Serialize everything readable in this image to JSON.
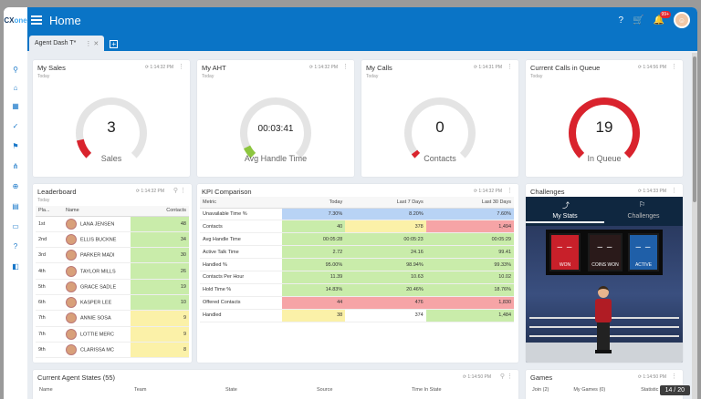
{
  "app": {
    "logo_main": "CX",
    "logo_sub": "one",
    "title": "Home",
    "notification_count": "99+"
  },
  "tabs": [
    {
      "label": "Agent Dash T*"
    }
  ],
  "widgets": {
    "my_sales": {
      "title": "My Sales",
      "time": "1:14:32 PM",
      "sub": "Today",
      "value": "3",
      "label": "Sales",
      "fraction": 0.12,
      "color": "#d9232d"
    },
    "my_aht": {
      "title": "My AHT",
      "time": "1:14:32 PM",
      "sub": "Today",
      "value": "00:03:41",
      "label": "Avg Handle Time",
      "fraction": 0.07,
      "color": "#8dc63f"
    },
    "my_calls": {
      "title": "My Calls",
      "time": "1:14:31 PM",
      "sub": "Today",
      "value": "0",
      "label": "Contacts",
      "fraction": 0.03,
      "color": "#d9232d"
    },
    "queue": {
      "title": "Current Calls in Queue",
      "time": "1:14:56 PM",
      "sub": "Today",
      "value": "19",
      "label": "In Queue",
      "fraction": 1.0,
      "color": "#d9232d"
    }
  },
  "leaderboard": {
    "title": "Leaderboard",
    "time": "1:14:32 PM",
    "sub": "Today",
    "columns": [
      "Pla...",
      "Name",
      "Contacts"
    ],
    "rows": [
      {
        "place": "1st",
        "name": "LANA JENSEN",
        "contacts": "48",
        "color": "#c9ecaa"
      },
      {
        "place": "2nd",
        "name": "ELLIS BUCKNE",
        "contacts": "34",
        "color": "#c9ecaa"
      },
      {
        "place": "3rd",
        "name": "PARKER MADI",
        "contacts": "30",
        "color": "#c9ecaa"
      },
      {
        "place": "4th",
        "name": "TAYLOR MILLS",
        "contacts": "26",
        "color": "#c9ecaa"
      },
      {
        "place": "5th",
        "name": "GRACE SADLE",
        "contacts": "19",
        "color": "#c9ecaa"
      },
      {
        "place": "6th",
        "name": "KASPER LEE",
        "contacts": "10",
        "color": "#c9ecaa"
      },
      {
        "place": "7th",
        "name": "ANNIE SOSA",
        "contacts": "9",
        "color": "#fbf1a8"
      },
      {
        "place": "7th",
        "name": "LOTTIE MERC",
        "contacts": "9",
        "color": "#fbf1a8"
      },
      {
        "place": "9th",
        "name": "CLARISSA MC",
        "contacts": "8",
        "color": "#fbf1a8"
      }
    ]
  },
  "kpi": {
    "title": "KPI Comparison",
    "time": "1:14:32 PM",
    "columns": [
      "Metric",
      "Today",
      "Last 7 Days",
      "Last 30 Days"
    ],
    "rows": [
      {
        "metric": "Unavailable Time %",
        "today": "7.30%",
        "week": "8.20%",
        "month": "7.60%",
        "c": [
          "b",
          "b",
          "b"
        ]
      },
      {
        "metric": "Contacts",
        "today": "40",
        "week": "378",
        "month": "1,494",
        "c": [
          "g",
          "y",
          "r"
        ]
      },
      {
        "metric": "Avg Handle Time",
        "today": "00:05:28",
        "week": "00:05:23",
        "month": "00:05:29",
        "c": [
          "g",
          "g",
          "g"
        ]
      },
      {
        "metric": "Active Talk Time",
        "today": "2.72",
        "week": "24.16",
        "month": "99.41",
        "c": [
          "g",
          "g",
          "g"
        ]
      },
      {
        "metric": "Handled %",
        "today": "95.00%",
        "week": "98.94%",
        "month": "99.33%",
        "c": [
          "g",
          "g",
          "g"
        ]
      },
      {
        "metric": "Contacts Per Hour",
        "today": "11.39",
        "week": "10.63",
        "month": "10.02",
        "c": [
          "g",
          "g",
          "g"
        ]
      },
      {
        "metric": "Hold Time %",
        "today": "14.83%",
        "week": "20.46%",
        "month": "18.76%",
        "c": [
          "g",
          "g",
          "g"
        ]
      },
      {
        "metric": "Offered Contacts",
        "today": "44",
        "week": "476",
        "month": "1,830",
        "c": [
          "r",
          "r",
          "r"
        ]
      },
      {
        "metric": "Handled",
        "today": "38",
        "week": "374",
        "month": "1,484",
        "c": [
          "y",
          "",
          "g"
        ]
      }
    ]
  },
  "challenges": {
    "title": "Challenges",
    "time": "1:14:33 PM",
    "tab_stats": "My Stats",
    "tab_challenges": "Challenges",
    "stats": [
      {
        "value": "– –",
        "label": "WON",
        "color": "#c8202a"
      },
      {
        "value": "– –",
        "label": "COINS WON",
        "color": "#2a1a1a"
      },
      {
        "value": "– –",
        "label": "ACTIVE",
        "color": "#1f5fa8"
      }
    ]
  },
  "agent_states": {
    "title": "Current Agent States (55)",
    "time": "1:14:50 PM",
    "columns": [
      "Name",
      "Team",
      "State",
      "Source",
      "Time In State"
    ]
  },
  "games": {
    "title": "Games",
    "time": "1:14:50 PM",
    "columns": [
      "Join (2)",
      "My Games (0)",
      "Statistic"
    ]
  },
  "pager": "14 / 20"
}
